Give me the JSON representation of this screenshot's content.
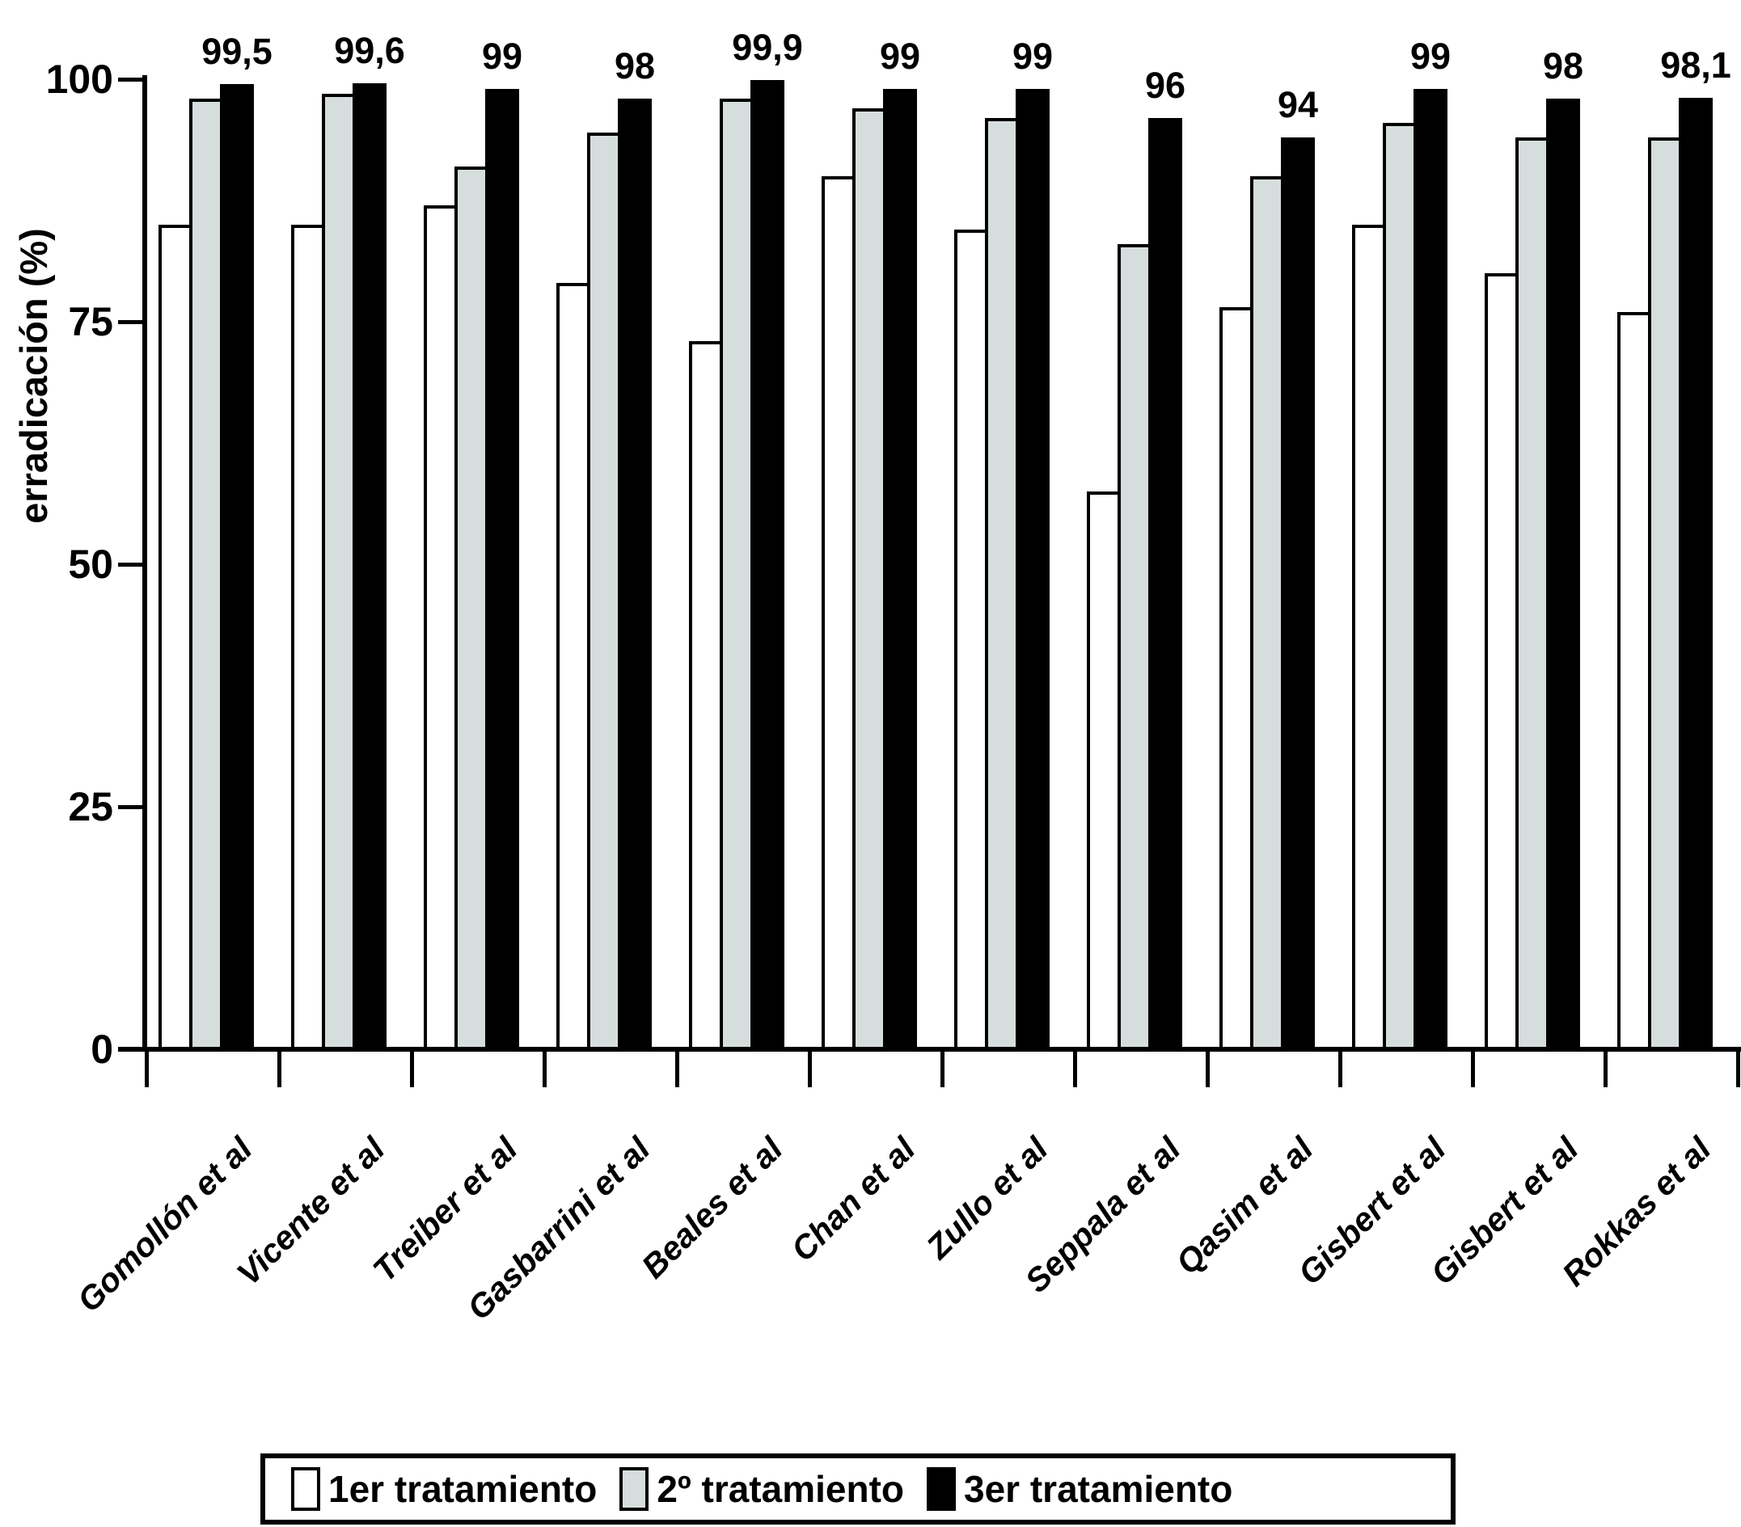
{
  "chart_data": {
    "type": "bar",
    "title": "",
    "ylabel": "erradicación (%)",
    "xlabel": "",
    "ylim": [
      0,
      100
    ],
    "yticks": [
      "0",
      "25",
      "50",
      "75",
      "100"
    ],
    "grid": false,
    "legend_position": "bottom",
    "axis_color": "#000000",
    "categories": [
      "Gomollón et al",
      "Vicente et al",
      "Treiber et al",
      "Gasbarrini et al",
      "Beales et al",
      "Chan et al",
      "Zullo et al",
      "Seppala et al",
      "Qasim et al",
      "Gisbert et al",
      "Gisbert et al",
      "Rokkas et al"
    ],
    "series": [
      {
        "name": "1er tratamiento",
        "color": "#ffffff",
        "values": [
          85,
          85,
          87,
          79,
          73,
          90,
          84.5,
          57.5,
          76.5,
          85,
          80,
          76
        ]
      },
      {
        "name": "2º tratamiento",
        "color": "#d6dedd",
        "values": [
          98,
          98.5,
          91,
          94.5,
          98,
          97,
          96,
          83,
          90,
          95.5,
          94,
          94
        ]
      },
      {
        "name": "3er tratamiento",
        "color": "#000000",
        "values": [
          99.5,
          99.6,
          99,
          98,
          99.9,
          99,
          99,
          96,
          94,
          99,
          98,
          98.1
        ]
      }
    ],
    "bar_labels": [
      "99,5",
      "99,6",
      "99",
      "98",
      "99,9",
      "99",
      "99",
      "96",
      "94",
      "99",
      "98",
      "98,1"
    ]
  }
}
